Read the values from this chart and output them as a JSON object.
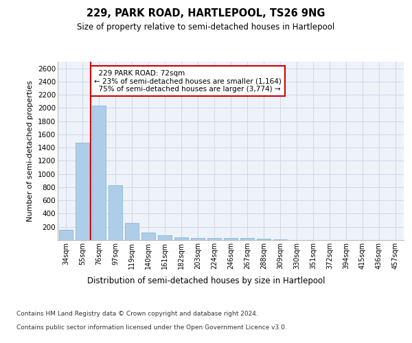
{
  "title": "229, PARK ROAD, HARTLEPOOL, TS26 9NG",
  "subtitle": "Size of property relative to semi-detached houses in Hartlepool",
  "xlabel": "Distribution of semi-detached houses by size in Hartlepool",
  "ylabel": "Number of semi-detached properties",
  "categories": [
    "34sqm",
    "55sqm",
    "76sqm",
    "97sqm",
    "119sqm",
    "140sqm",
    "161sqm",
    "182sqm",
    "203sqm",
    "224sqm",
    "246sqm",
    "267sqm",
    "288sqm",
    "309sqm",
    "330sqm",
    "351sqm",
    "372sqm",
    "394sqm",
    "415sqm",
    "436sqm",
    "457sqm"
  ],
  "values": [
    155,
    1470,
    2040,
    835,
    255,
    115,
    75,
    45,
    35,
    30,
    30,
    35,
    25,
    15,
    0,
    0,
    0,
    0,
    0,
    0,
    0
  ],
  "bar_color": "#aecde8",
  "bar_edge_color": "#7bafd4",
  "property_label": "229 PARK ROAD: 72sqm",
  "pct_smaller": 23,
  "count_smaller": 1164,
  "pct_larger": 75,
  "count_larger": 3774,
  "vline_x_index": 1.5,
  "annotation_box_color": "#ffffff",
  "annotation_box_edge": "#cc0000",
  "vline_color": "#cc0000",
  "grid_color": "#d0d8e8",
  "bg_color": "#eef2f9",
  "ylim": [
    0,
    2700
  ],
  "yticks": [
    0,
    200,
    400,
    600,
    800,
    1000,
    1200,
    1400,
    1600,
    1800,
    2000,
    2200,
    2400,
    2600
  ],
  "footer1": "Contains HM Land Registry data © Crown copyright and database right 2024.",
  "footer2": "Contains public sector information licensed under the Open Government Licence v3.0."
}
